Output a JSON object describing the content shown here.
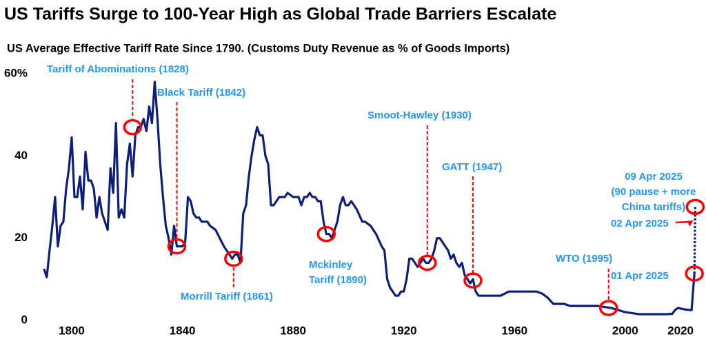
{
  "chart_data": {
    "type": "line",
    "title": "US Tariffs Surge to 100-Year High as Global Trade Barriers Escalate",
    "subtitle": "US Average Effective Tariff Rate Since 1790. (Customs Duty Revenue as % of Goods Imports)",
    "xlim": [
      1788,
      2028
    ],
    "xticks": [
      1800,
      1840,
      1880,
      1920,
      1960,
      2000,
      2020
    ],
    "ylim": [
      0,
      60
    ],
    "yticks": [
      0,
      20,
      40,
      {
        "value": 60,
        "label": "60%"
      }
    ],
    "grid": false,
    "series": [
      {
        "color": "#0d1f7a",
        "line_style": "solid",
        "x": [
          1790,
          1791,
          1792,
          1793,
          1794,
          1795,
          1796,
          1797,
          1798,
          1799,
          1800,
          1801,
          1802,
          1803,
          1804,
          1805,
          1806,
          1807,
          1808,
          1809,
          1810,
          1811,
          1812,
          1813,
          1814,
          1815,
          1816,
          1817,
          1818,
          1819,
          1820,
          1821,
          1822,
          1823,
          1824,
          1825,
          1826,
          1827,
          1828,
          1829,
          1830,
          1831,
          1832,
          1833,
          1834,
          1835,
          1836,
          1837,
          1838,
          1839,
          1840,
          1841,
          1842,
          1843,
          1844,
          1845,
          1846,
          1847,
          1848,
          1849,
          1850,
          1852,
          1855,
          1857,
          1858,
          1859,
          1860,
          1861,
          1862,
          1863,
          1864,
          1865,
          1866,
          1867,
          1868,
          1869,
          1870,
          1871,
          1872,
          1873,
          1875,
          1877,
          1878,
          1880,
          1882,
          1883,
          1884,
          1885,
          1886,
          1887,
          1888,
          1889,
          1890,
          1891,
          1892,
          1893,
          1894,
          1895,
          1896,
          1897,
          1898,
          1899,
          1900,
          1901,
          1902,
          1903,
          1905,
          1906,
          1908,
          1910,
          1912,
          1913,
          1914,
          1915,
          1916,
          1917,
          1918,
          1919,
          1920,
          1921,
          1922,
          1923,
          1924,
          1925,
          1926,
          1927,
          1928,
          1929,
          1930,
          1931,
          1932,
          1933,
          1934,
          1935,
          1936,
          1937,
          1938,
          1939,
          1940,
          1941,
          1942,
          1943,
          1944,
          1945,
          1946,
          1947,
          1950,
          1955,
          1958,
          1962,
          1968,
          1970,
          1972,
          1974,
          1978,
          1980,
          1990,
          1995,
          2000,
          2005,
          2015,
          2017,
          2018,
          2019,
          2022,
          2024,
          2025
        ],
        "values": [
          12.5,
          10.5,
          17,
          23,
          30,
          18,
          23,
          24,
          32,
          37,
          44.5,
          30,
          30,
          35,
          27,
          41,
          34,
          34,
          32,
          25,
          30,
          26,
          24,
          22,
          37,
          31,
          48,
          25,
          27,
          25,
          38,
          43,
          35,
          45,
          47,
          47,
          49,
          46,
          52,
          48,
          58,
          49,
          38,
          30,
          23,
          20,
          16,
          23,
          18,
          18,
          18,
          19,
          30,
          29,
          26,
          25,
          25,
          24,
          24,
          24,
          23,
          22,
          18,
          16,
          15,
          16,
          16,
          14,
          26,
          28,
          35,
          40,
          44,
          47,
          45,
          45,
          40,
          38,
          28,
          28,
          30,
          30,
          31,
          30,
          30,
          28,
          30,
          30,
          31,
          30,
          30,
          29,
          29,
          24,
          21,
          21,
          20,
          22,
          24,
          28,
          30,
          28,
          28,
          29,
          28,
          27,
          24,
          24,
          23,
          21,
          18,
          17,
          10,
          8,
          7,
          6,
          6,
          7,
          7,
          10,
          15,
          15,
          14,
          13,
          14,
          15,
          14,
          14,
          15,
          17,
          20,
          20,
          19,
          18,
          17,
          15,
          16,
          14,
          13,
          14,
          11,
          10,
          9,
          10,
          7,
          6,
          6,
          6,
          7,
          7,
          7,
          6.5,
          5.5,
          4,
          4,
          3.5,
          3.5,
          3,
          2,
          1.5,
          1.5,
          1.6,
          2.5,
          3,
          2.6,
          2.5,
          11.4
        ]
      },
      {
        "color": "#0d1f7a",
        "line_style": "dashed",
        "x": [
          2025,
          2025.3
        ],
        "values": [
          11.4,
          27.6
        ]
      }
    ],
    "annotations": [
      {
        "lines": [
          "Tariff of Abominations (1828)"
        ],
        "x": 1822,
        "y": 47,
        "circle": true
      },
      {
        "lines": [
          "Black Tariff (1842)"
        ],
        "x": 1838,
        "y": 18,
        "circle": true
      },
      {
        "lines": [
          "Morrill Tariff (1861)"
        ],
        "x": 1858.5,
        "y": 15,
        "circle": true
      },
      {
        "lines": [
          "Mckinley",
          "Tariff (1890)"
        ],
        "x": 1892,
        "y": 21,
        "circle": true
      },
      {
        "lines": [
          "Smoot-Hawley (1930)"
        ],
        "x": 1928.5,
        "y": 14,
        "circle": true
      },
      {
        "lines": [
          "GATT (1947)"
        ],
        "x": 1945,
        "y": 9.7,
        "circle": true
      },
      {
        "lines": [
          "WTO (1995)"
        ],
        "x": 1994,
        "y": 3,
        "circle": true
      },
      {
        "lines": [
          "01 Apr 2025"
        ],
        "x": 2025,
        "y": 11.4,
        "circle": true
      },
      {
        "lines": [
          "02 Apr 2025"
        ],
        "x": 2025.1,
        "y": 25,
        "circle": false
      },
      {
        "lines": [
          "09 Apr 2025",
          "(90 pause + more",
          "China tariffs)"
        ],
        "x": 2025.3,
        "y": 27.6,
        "circle": true
      }
    ],
    "circle_color": "#ff0000",
    "annotation_color": "#2196f3"
  }
}
